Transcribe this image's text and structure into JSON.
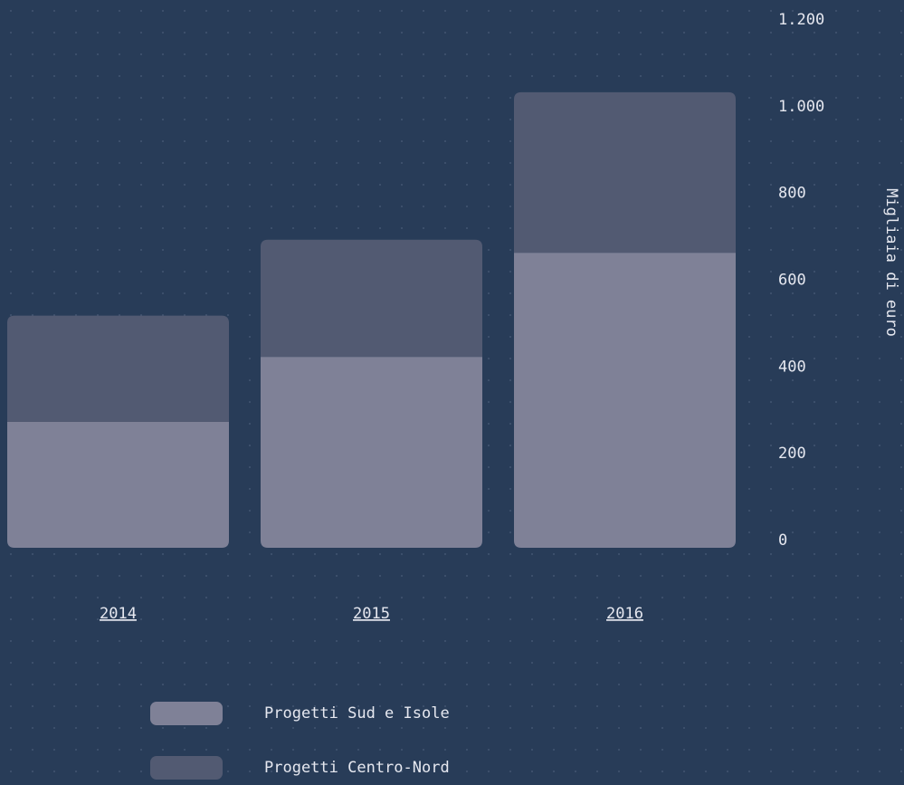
{
  "chart_data": {
    "type": "stacked_bar",
    "categories": [
      "2014",
      "2015",
      "2016"
    ],
    "series": [
      {
        "name": "Progetti Sud e Isole",
        "color": "#7f8197",
        "values": [
          290,
          440,
          680
        ]
      },
      {
        "name": "Progetti Centro-Nord",
        "color": "#525a72",
        "values": [
          245,
          270,
          370
        ]
      }
    ],
    "ylim": [
      0,
      1200
    ],
    "yticks": [
      0,
      200,
      400,
      600,
      800,
      {
        "value": 1000,
        "label": "1.000"
      },
      {
        "value": 1200,
        "label": "1.200"
      }
    ],
    "ylabel": "Migliaia di euro"
  }
}
